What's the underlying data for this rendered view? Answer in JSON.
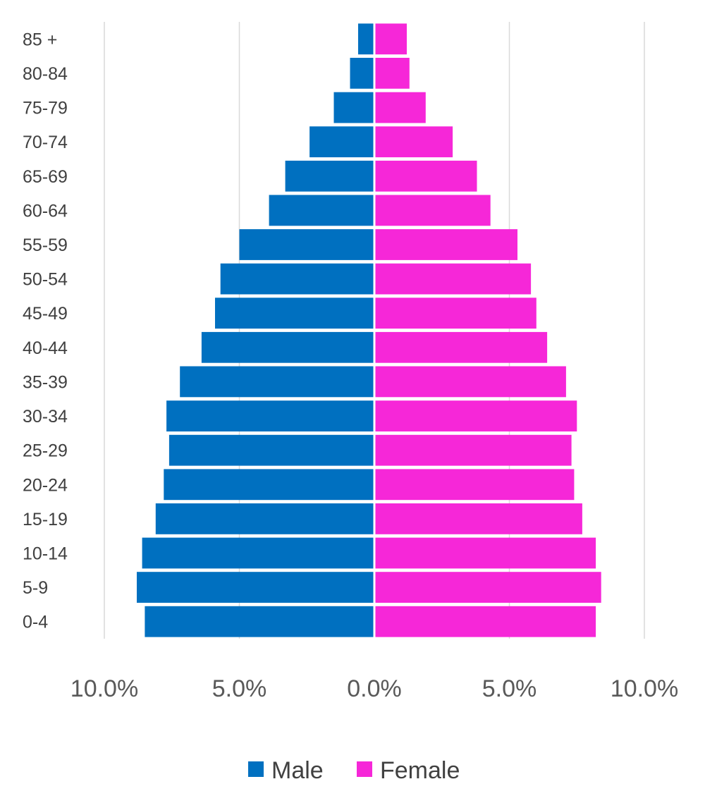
{
  "chart_data": {
    "type": "bar",
    "orientation": "horizontal",
    "layout": "population-pyramid",
    "categories": [
      "0-4",
      "5-9",
      "10-14",
      "15-19",
      "20-24",
      "25-29",
      "30-34",
      "35-39",
      "40-44",
      "45-49",
      "50-54",
      "55-59",
      "60-64",
      "65-69",
      "70-74",
      "75-79",
      "80-84",
      "85 +"
    ],
    "series": [
      {
        "name": "Male",
        "color": "#0070C0",
        "direction": "left",
        "values": [
          8.5,
          8.8,
          8.6,
          8.1,
          7.8,
          7.6,
          7.7,
          7.2,
          6.4,
          5.9,
          5.7,
          5.0,
          3.9,
          3.3,
          2.4,
          1.5,
          0.9,
          0.6
        ]
      },
      {
        "name": "Female",
        "color": "#F627D8",
        "direction": "right",
        "values": [
          8.2,
          8.4,
          8.2,
          7.7,
          7.4,
          7.3,
          7.5,
          7.1,
          6.4,
          6.0,
          5.8,
          5.3,
          4.3,
          3.8,
          2.9,
          1.9,
          1.3,
          1.2
        ]
      }
    ],
    "xlim": [
      -10,
      10
    ],
    "xticks": [
      -10,
      -5,
      0,
      5,
      10
    ],
    "xtick_labels": [
      "10.0%",
      "5.0%",
      "0.0%",
      "5.0%",
      "10.0%"
    ],
    "grid": true,
    "legend_position": "bottom",
    "title": "",
    "xlabel": "",
    "ylabel": ""
  }
}
